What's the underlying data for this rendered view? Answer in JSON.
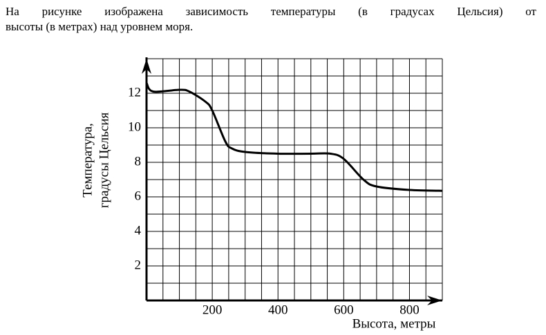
{
  "intro": [
    "На рисунке изображена зависимость температуры (в градусах Цельсия) от",
    "высоты (в метрах) над уровнем моря."
  ],
  "chart_data": {
    "type": "line",
    "x": [
      0,
      20,
      100,
      130,
      180,
      200,
      240,
      260,
      300,
      400,
      500,
      560,
      600,
      660,
      700,
      800,
      900
    ],
    "values": [
      12.6,
      12.1,
      12.2,
      12.1,
      11.5,
      11.0,
      9.2,
      8.8,
      8.6,
      8.5,
      8.5,
      8.5,
      8.2,
      7.0,
      6.6,
      6.4,
      6.35
    ],
    "color": "#000000",
    "xlim": [
      0,
      900
    ],
    "ylim": [
      0,
      14
    ],
    "xticks": [
      200,
      400,
      600,
      800
    ],
    "yticks": [
      2,
      4,
      6,
      8,
      10,
      12
    ],
    "grid_step": {
      "x": 50,
      "y": 1
    },
    "x_label": "Высота, метры",
    "y_label": [
      "Температура,",
      "градусы Цельсия"
    ]
  }
}
